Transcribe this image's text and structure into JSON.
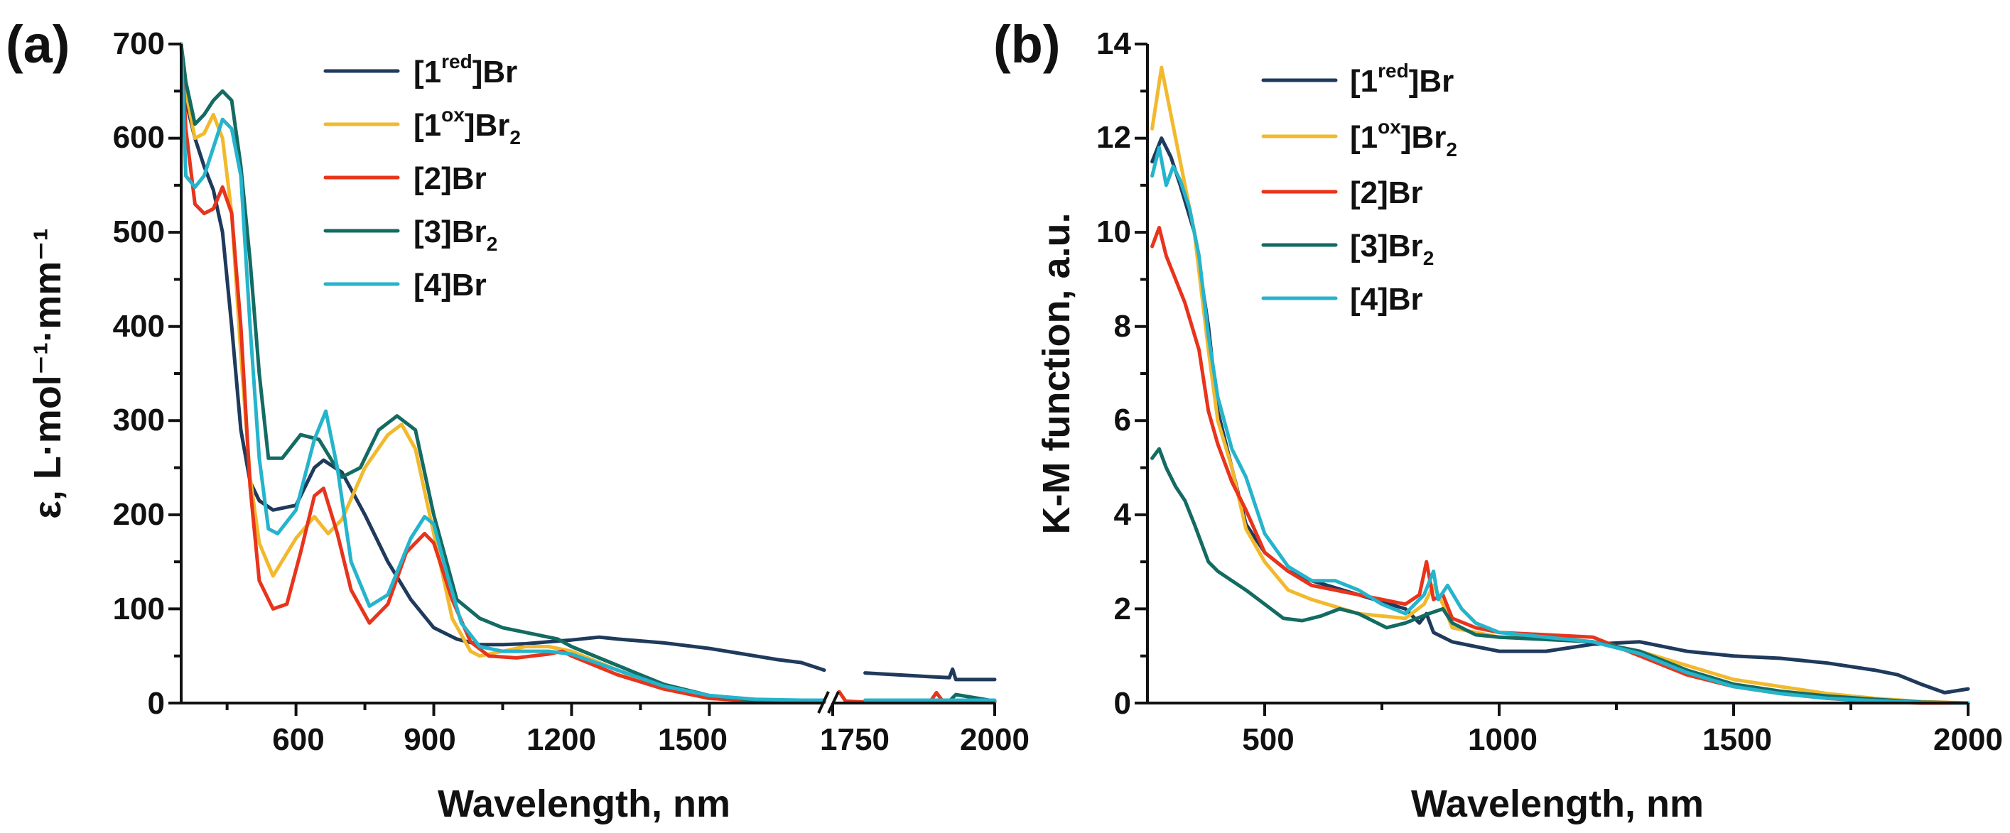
{
  "colors": {
    "1red": "#1f3a5c",
    "1ox": "#f2b92e",
    "2": "#e8341c",
    "3": "#136b62",
    "4": "#25b4cc"
  },
  "chart_data": [
    {
      "panel": "(a)",
      "type": "line",
      "xlabel": "Wavelength, nm",
      "ylabel": "ε, L·mol⁻¹·mm⁻¹",
      "ylim": [
        0,
        700
      ],
      "x_segments": [
        [
          300,
          1750
        ],
        [
          1750,
          2000
        ]
      ],
      "x_ticks": [
        "600",
        "900",
        "1200",
        "1500",
        "1750",
        "2000"
      ],
      "y_ticks": [
        "0",
        "100",
        "200",
        "300",
        "400",
        "500",
        "600",
        "700"
      ],
      "legend": {
        "placement": "top-right",
        "entries": [
          {
            "key": "1red",
            "label": "[1",
            "sup": "red",
            "label2": "]Br",
            "sub": ""
          },
          {
            "key": "1ox",
            "label": "[1",
            "sup": "ox",
            "label2": "]Br",
            "sub": "2"
          },
          {
            "key": "2",
            "label": "[2]Br",
            "sup": "",
            "label2": "",
            "sub": ""
          },
          {
            "key": "3",
            "label": "[3]Br",
            "sup": "",
            "label2": "",
            "sub": "2"
          },
          {
            "key": "4",
            "label": "[4]Br",
            "sup": "",
            "label2": "",
            "sub": ""
          }
        ]
      },
      "series": [
        {
          "key": "1red",
          "name": "[1red]Br",
          "x": [
            340,
            360,
            380,
            400,
            420,
            440,
            460,
            480,
            500,
            520,
            550,
            600,
            640,
            660,
            700,
            750,
            800,
            850,
            900,
            950,
            1000,
            1050,
            1100,
            1150,
            1200,
            1260,
            1300,
            1400,
            1500,
            1550,
            1600,
            1650,
            1700,
            1750,
            1800,
            1850,
            1900,
            1930,
            1935,
            1940,
            2000
          ],
          "y": [
            700,
            640,
            600,
            570,
            545,
            500,
            400,
            290,
            235,
            215,
            205,
            210,
            250,
            258,
            245,
            200,
            150,
            110,
            80,
            68,
            62,
            62,
            63,
            65,
            67,
            70,
            68,
            64,
            58,
            54,
            50,
            46,
            43,
            35,
            32,
            30,
            28,
            27,
            36,
            25,
            25
          ]
        },
        {
          "key": "1ox",
          "name": "[1ox]Br2",
          "x": [
            340,
            360,
            380,
            400,
            420,
            440,
            460,
            480,
            500,
            520,
            550,
            600,
            640,
            670,
            700,
            750,
            800,
            830,
            860,
            900,
            940,
            980,
            1000,
            1050,
            1100,
            1150,
            1200,
            1300,
            1400,
            1500,
            1600,
            1700,
            1750,
            1800,
            1900,
            2000
          ],
          "y": [
            700,
            650,
            600,
            605,
            625,
            600,
            520,
            370,
            240,
            170,
            135,
            175,
            198,
            180,
            195,
            250,
            285,
            296,
            270,
            180,
            90,
            55,
            50,
            55,
            60,
            60,
            55,
            35,
            15,
            5,
            2,
            1,
            1,
            1,
            1,
            1
          ]
        },
        {
          "key": "2",
          "name": "[2]Br",
          "x": [
            340,
            360,
            380,
            400,
            420,
            440,
            460,
            480,
            500,
            520,
            550,
            580,
            610,
            640,
            660,
            690,
            720,
            760,
            800,
            840,
            880,
            900,
            940,
            980,
            1020,
            1080,
            1150,
            1180,
            1200,
            1300,
            1400,
            1500,
            1600,
            1700,
            1750,
            1760,
            1770,
            1800,
            1850,
            1900,
            1910,
            1920,
            1940,
            2000
          ],
          "y": [
            700,
            610,
            530,
            520,
            525,
            548,
            520,
            400,
            230,
            130,
            100,
            105,
            160,
            220,
            228,
            180,
            120,
            85,
            105,
            160,
            180,
            170,
            110,
            65,
            50,
            48,
            52,
            55,
            50,
            30,
            15,
            5,
            2,
            1,
            1,
            12,
            2,
            1,
            1,
            1,
            11,
            2,
            1,
            1
          ]
        },
        {
          "key": "3",
          "name": "[3]Br2",
          "x": [
            340,
            360,
            380,
            400,
            420,
            440,
            460,
            480,
            500,
            520,
            540,
            570,
            610,
            650,
            700,
            740,
            780,
            820,
            860,
            900,
            950,
            1000,
            1050,
            1100,
            1150,
            1170,
            1200,
            1300,
            1400,
            1500,
            1600,
            1700,
            1750,
            1800,
            1900,
            1930,
            1940,
            2000
          ],
          "y": [
            700,
            660,
            615,
            625,
            640,
            650,
            640,
            570,
            470,
            350,
            260,
            260,
            285,
            280,
            240,
            250,
            290,
            305,
            290,
            200,
            110,
            90,
            80,
            75,
            70,
            68,
            60,
            40,
            20,
            8,
            3,
            2,
            2,
            2,
            2,
            2,
            9,
            2
          ]
        },
        {
          "key": "4",
          "name": "[4]Br",
          "x": [
            340,
            360,
            380,
            400,
            420,
            440,
            460,
            480,
            500,
            520,
            540,
            560,
            600,
            640,
            665,
            690,
            720,
            760,
            800,
            850,
            880,
            900,
            930,
            960,
            1000,
            1050,
            1100,
            1150,
            1200,
            1300,
            1400,
            1500,
            1600,
            1700,
            1750,
            1800,
            1900,
            2000
          ],
          "y": [
            700,
            560,
            548,
            560,
            590,
            620,
            610,
            560,
            400,
            260,
            185,
            180,
            205,
            280,
            310,
            250,
            150,
            103,
            115,
            175,
            198,
            190,
            135,
            85,
            60,
            55,
            55,
            55,
            52,
            35,
            18,
            8,
            4,
            3,
            3,
            3,
            3,
            3
          ]
        }
      ]
    },
    {
      "panel": "(b)",
      "type": "line",
      "xlabel": "Wavelength, nm",
      "ylabel": "K-M function, a.u.",
      "xlim": [
        250,
        2000
      ],
      "ylim": [
        0,
        14
      ],
      "x_ticks": [
        "500",
        "1000",
        "1500",
        "2000"
      ],
      "y_ticks": [
        "0",
        "2",
        "4",
        "6",
        "8",
        "10",
        "12",
        "14"
      ],
      "legend": {
        "placement": "top-right",
        "entries": [
          {
            "key": "1red",
            "label": "[1",
            "sup": "red",
            "label2": "]Br",
            "sub": ""
          },
          {
            "key": "1ox",
            "label": "[1",
            "sup": "ox",
            "label2": "]Br",
            "sub": "2"
          },
          {
            "key": "2",
            "label": "[2]Br",
            "sup": "",
            "label2": "",
            "sub": ""
          },
          {
            "key": "3",
            "label": "[3]Br",
            "sup": "",
            "label2": "",
            "sub": "2"
          },
          {
            "key": "4",
            "label": "[4]Br",
            "sup": "",
            "label2": "",
            "sub": ""
          }
        ]
      },
      "series": [
        {
          "key": "1red",
          "name": "[1red]Br",
          "x": [
            260,
            280,
            300,
            320,
            350,
            380,
            400,
            430,
            460,
            500,
            550,
            600,
            700,
            800,
            830,
            845,
            860,
            900,
            950,
            1000,
            1100,
            1200,
            1300,
            1400,
            1500,
            1600,
            1700,
            1800,
            1850,
            1900,
            1950,
            2000
          ],
          "y": [
            11.5,
            12.0,
            11.6,
            11.0,
            10.0,
            8.0,
            6.2,
            5.0,
            3.8,
            3.2,
            2.8,
            2.6,
            2.3,
            2.0,
            1.7,
            1.9,
            1.5,
            1.3,
            1.2,
            1.1,
            1.1,
            1.25,
            1.3,
            1.1,
            1.0,
            0.95,
            0.85,
            0.7,
            0.6,
            0.4,
            0.22,
            0.3
          ]
        },
        {
          "key": "1ox",
          "name": "[1ox]Br2",
          "x": [
            260,
            280,
            300,
            320,
            350,
            380,
            400,
            430,
            460,
            500,
            550,
            600,
            700,
            800,
            840,
            860,
            880,
            900,
            950,
            1000,
            1100,
            1200,
            1300,
            1400,
            1500,
            1600,
            1700,
            1800,
            1900,
            2000
          ],
          "y": [
            12.2,
            13.5,
            12.5,
            11.5,
            10.0,
            7.5,
            6.0,
            5.0,
            3.7,
            3.0,
            2.4,
            2.2,
            1.9,
            1.8,
            2.1,
            2.5,
            2.1,
            1.6,
            1.5,
            1.4,
            1.4,
            1.3,
            1.1,
            0.8,
            0.5,
            0.35,
            0.2,
            0.1,
            0.03,
            0
          ]
        },
        {
          "key": "2",
          "name": "[2]Br",
          "x": [
            260,
            275,
            290,
            310,
            330,
            360,
            380,
            400,
            430,
            460,
            500,
            550,
            600,
            700,
            800,
            830,
            845,
            860,
            880,
            900,
            950,
            1000,
            1100,
            1200,
            1300,
            1400,
            1500,
            1600,
            1700,
            1800,
            1900,
            2000
          ],
          "y": [
            9.7,
            10.1,
            9.5,
            9.0,
            8.5,
            7.5,
            6.2,
            5.5,
            4.7,
            4.1,
            3.2,
            2.8,
            2.5,
            2.3,
            2.1,
            2.3,
            3.0,
            2.2,
            2.3,
            1.8,
            1.6,
            1.5,
            1.45,
            1.4,
            1.0,
            0.6,
            0.35,
            0.2,
            0.1,
            0.03,
            0,
            0
          ]
        },
        {
          "key": "3",
          "name": "[3]Br2",
          "x": [
            260,
            275,
            290,
            310,
            330,
            350,
            380,
            400,
            430,
            460,
            500,
            540,
            580,
            620,
            660,
            700,
            760,
            800,
            850,
            880,
            900,
            950,
            1000,
            1100,
            1200,
            1300,
            1400,
            1500,
            1600,
            1700,
            1800,
            1900,
            2000
          ],
          "y": [
            5.2,
            5.4,
            5.0,
            4.6,
            4.3,
            3.8,
            3.0,
            2.8,
            2.6,
            2.4,
            2.1,
            1.8,
            1.75,
            1.85,
            2.0,
            1.9,
            1.6,
            1.7,
            1.9,
            2.0,
            1.7,
            1.45,
            1.4,
            1.35,
            1.3,
            1.1,
            0.7,
            0.4,
            0.25,
            0.15,
            0.08,
            0.02,
            0
          ]
        },
        {
          "key": "4",
          "name": "[4]Br",
          "x": [
            260,
            275,
            290,
            305,
            320,
            340,
            360,
            380,
            400,
            430,
            460,
            500,
            550,
            600,
            650,
            700,
            750,
            800,
            840,
            860,
            870,
            890,
            920,
            950,
            1000,
            1100,
            1200,
            1300,
            1400,
            1500,
            1600,
            1700,
            1800,
            1900,
            2000
          ],
          "y": [
            11.2,
            11.8,
            11.0,
            11.4,
            11.1,
            10.5,
            9.5,
            7.8,
            6.5,
            5.4,
            4.8,
            3.6,
            2.9,
            2.6,
            2.6,
            2.4,
            2.1,
            1.9,
            2.3,
            2.8,
            2.2,
            2.5,
            2.0,
            1.7,
            1.5,
            1.4,
            1.3,
            1.05,
            0.65,
            0.35,
            0.2,
            0.1,
            0.05,
            0.01,
            0
          ]
        }
      ]
    }
  ]
}
